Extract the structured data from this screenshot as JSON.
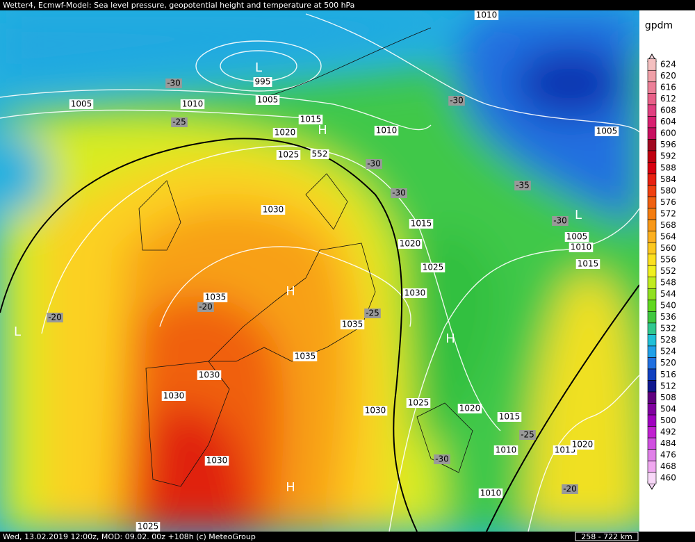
{
  "header": {
    "title": "Wetter4, Ecmwf-Model: Sea level pressure, geopotential height and temperature at 500 hPa"
  },
  "footer": {
    "text": "Wed, 13.02.2019 12:00z, MOD: 09.02. 00z +108h (c) MeteoGroup",
    "scale": "258 - 722 km"
  },
  "legend": {
    "unit": "gpdm",
    "labels": [
      624,
      620,
      616,
      612,
      608,
      604,
      600,
      596,
      592,
      588,
      584,
      580,
      576,
      572,
      568,
      564,
      560,
      556,
      552,
      548,
      544,
      540,
      536,
      532,
      528,
      524,
      520,
      516,
      512,
      508,
      504,
      500,
      492,
      484,
      476,
      468,
      460
    ],
    "colors": [
      "#f4c0c0",
      "#f0a0a8",
      "#ec8098",
      "#e86088",
      "#e04080",
      "#d82070",
      "#c81060",
      "#a00820",
      "#c00010",
      "#d80010",
      "#e82010",
      "#f04010",
      "#f06010",
      "#f47c10",
      "#f89818",
      "#fcb020",
      "#fcc820",
      "#fce020",
      "#f0f020",
      "#c0ec20",
      "#90e020",
      "#60d820",
      "#40c840",
      "#30c890",
      "#20c0d8",
      "#20a0e8",
      "#2070e0",
      "#1040c0",
      "#101890",
      "#600080",
      "#8000a0",
      "#a000c0",
      "#c020d0",
      "#d050e0",
      "#e080e8",
      "#f0a8f0",
      "#f8d8f8"
    ]
  },
  "map": {
    "pressure_labels": [
      1010,
      995,
      1005,
      1005,
      1010,
      1015,
      1020,
      1025,
      1010,
      1005,
      1030,
      1015,
      1020,
      1005,
      1010,
      1015,
      1025,
      1030,
      1035,
      1035,
      1035,
      1030,
      1030,
      1025,
      1020,
      1015,
      1030,
      1030,
      1010,
      1015,
      1020,
      1010,
      1025
    ],
    "height_labels": [
      552
    ],
    "temperature_labels": [
      -30,
      -25,
      -30,
      -30,
      -30,
      -35,
      -30,
      -20,
      -20,
      -25,
      -25,
      -30,
      -20
    ],
    "highs": [
      "H",
      "H",
      "H",
      "H"
    ],
    "lows": [
      "L",
      "L",
      "L"
    ]
  }
}
